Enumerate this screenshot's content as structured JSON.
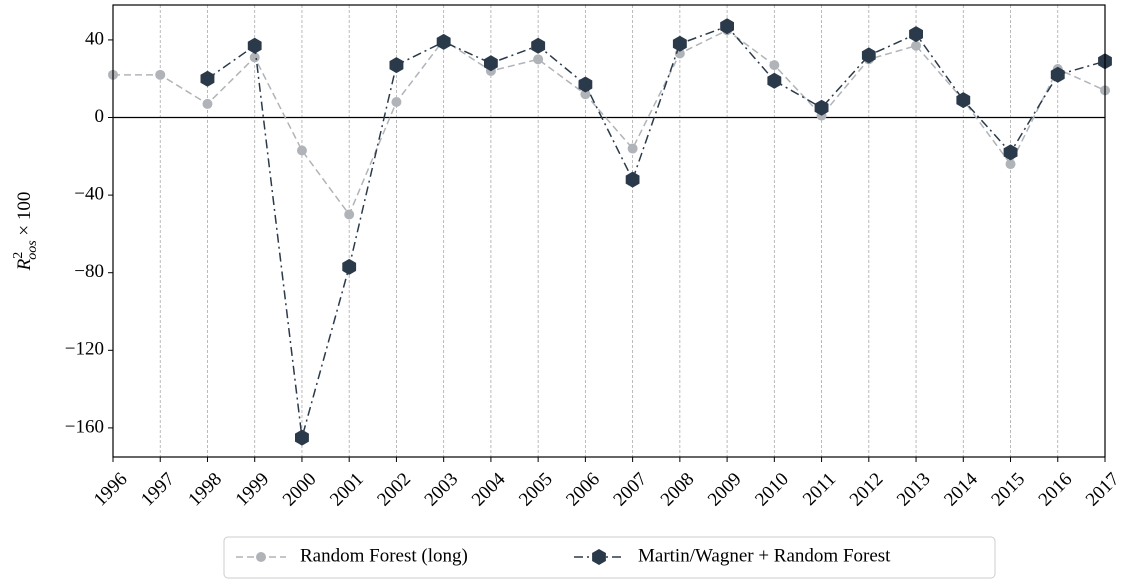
{
  "chart_data": {
    "type": "line",
    "y_label": {
      "base": "R",
      "sup": "2",
      "sub": "oos",
      "rest": " × 100"
    },
    "categories": [
      "1996",
      "1997",
      "1998",
      "1999",
      "2000",
      "2001",
      "2002",
      "2003",
      "2004",
      "2005",
      "2006",
      "2007",
      "2008",
      "2009",
      "2010",
      "2011",
      "2012",
      "2013",
      "2014",
      "2015",
      "2016",
      "2017"
    ],
    "series": [
      {
        "name": "Random Forest (long)",
        "color": "#b0b4b9",
        "marker": "circle",
        "dash": "dashed",
        "values": [
          22,
          22,
          7,
          31,
          -17,
          -50,
          8,
          40,
          24,
          30,
          12,
          -16,
          33,
          45,
          27,
          1,
          30,
          37,
          9,
          -24,
          25,
          14
        ]
      },
      {
        "name": "Martin/Wagner + Random Forest",
        "color": "#2b3a4a",
        "marker": "hexagon",
        "dash": "dashdot",
        "values": [
          null,
          null,
          20,
          37,
          -165,
          -77,
          27,
          39,
          28,
          37,
          17,
          -32,
          38,
          47,
          19,
          5,
          32,
          43,
          9,
          -18,
          22,
          29
        ]
      }
    ],
    "ylim": [
      -175,
      58
    ],
    "yticks": [
      {
        "value": -160,
        "label": "−160"
      },
      {
        "value": -120,
        "label": "−120"
      },
      {
        "value": -80,
        "label": "−80"
      },
      {
        "value": -40,
        "label": "−40"
      },
      0,
      40
    ],
    "grid": "x",
    "legend": "bottom"
  }
}
